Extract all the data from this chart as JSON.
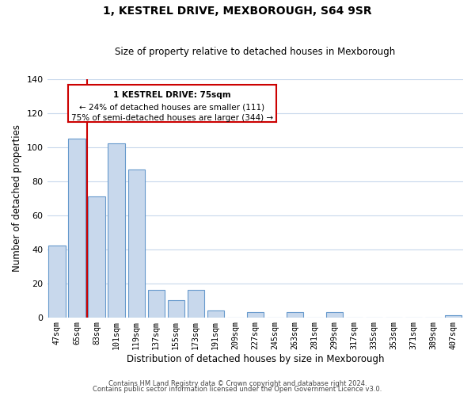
{
  "title": "1, KESTREL DRIVE, MEXBOROUGH, S64 9SR",
  "subtitle": "Size of property relative to detached houses in Mexborough",
  "xlabel": "Distribution of detached houses by size in Mexborough",
  "ylabel": "Number of detached properties",
  "bar_labels": [
    "47sqm",
    "65sqm",
    "83sqm",
    "101sqm",
    "119sqm",
    "137sqm",
    "155sqm",
    "173sqm",
    "191sqm",
    "209sqm",
    "227sqm",
    "245sqm",
    "263sqm",
    "281sqm",
    "299sqm",
    "317sqm",
    "335sqm",
    "353sqm",
    "371sqm",
    "389sqm",
    "407sqm"
  ],
  "bar_values": [
    42,
    105,
    71,
    102,
    87,
    16,
    10,
    16,
    4,
    0,
    3,
    0,
    3,
    0,
    3,
    0,
    0,
    0,
    0,
    0,
    1
  ],
  "bar_fill_color": "#c8d8ec",
  "bar_edge_color": "#6699cc",
  "vline_x_index": 1,
  "vline_color": "#cc0000",
  "annotation_text_line1": "1 KESTREL DRIVE: 75sqm",
  "annotation_text_line2": "← 24% of detached houses are smaller (111)",
  "annotation_text_line3": "75% of semi-detached houses are larger (344) →",
  "annotation_box_edge_color": "#cc0000",
  "ylim": [
    0,
    140
  ],
  "yticks": [
    0,
    20,
    40,
    60,
    80,
    100,
    120,
    140
  ],
  "footer_line1": "Contains HM Land Registry data © Crown copyright and database right 2024.",
  "footer_line2": "Contains public sector information licensed under the Open Government Licence v3.0.",
  "background_color": "#ffffff",
  "grid_color": "#c8d8ec"
}
